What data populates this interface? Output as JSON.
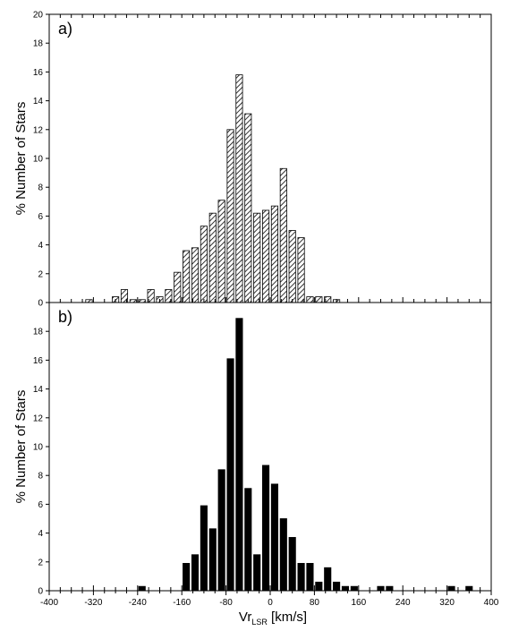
{
  "chart_data": [
    {
      "type": "bar",
      "panel_label": "a)",
      "title": "",
      "xlabel": "",
      "ylabel": "% Number of Stars",
      "xlim": [
        -400,
        400
      ],
      "ylim": [
        0,
        20
      ],
      "y_ticks": [
        0,
        2,
        4,
        6,
        8,
        10,
        12,
        14,
        16,
        18,
        20
      ],
      "bin_width": 16,
      "fill": "hatched",
      "bar_color": "#000000",
      "grid": false,
      "x": [
        -328,
        -280,
        -264,
        -248,
        -232,
        -216,
        -200,
        -184,
        -168,
        -152,
        -136,
        -120,
        -104,
        -88,
        -72,
        -56,
        -40,
        -24,
        -8,
        8,
        24,
        40,
        56,
        72,
        88,
        104,
        120,
        136,
        152
      ],
      "values": [
        0.2,
        0.4,
        0.9,
        0.2,
        0.2,
        0.9,
        0.4,
        0.9,
        2.1,
        3.6,
        3.8,
        5.3,
        6.2,
        7.1,
        12.0,
        15.8,
        13.1,
        6.2,
        6.4,
        6.7,
        9.3,
        5.0,
        4.5,
        0.4,
        0.4,
        0.4,
        0.2,
        0.0,
        0.0
      ]
    },
    {
      "type": "bar",
      "panel_label": "b)",
      "title": "",
      "xlabel": "Vr",
      "xlabel_sub": "LSR",
      "xlabel_unit": " [km/s]",
      "ylabel": "% Number of Stars",
      "xlim": [
        -400,
        400
      ],
      "ylim": [
        0,
        20
      ],
      "y_ticks": [
        0,
        2,
        4,
        6,
        8,
        10,
        12,
        14,
        16,
        18
      ],
      "x_ticks": [
        -400,
        -320,
        -240,
        -160,
        -80,
        0,
        80,
        160,
        240,
        320,
        400
      ],
      "bin_width": 16,
      "fill": "solid",
      "bar_color": "#000000",
      "grid": false,
      "x": [
        -232,
        -152,
        -136,
        -120,
        -104,
        -88,
        -72,
        -56,
        -40,
        -24,
        -8,
        8,
        24,
        40,
        56,
        72,
        88,
        104,
        120,
        136,
        152,
        200,
        216,
        264,
        296,
        328,
        360
      ],
      "values": [
        0.3,
        1.9,
        2.5,
        5.9,
        4.3,
        8.4,
        16.1,
        18.9,
        7.1,
        2.5,
        8.7,
        7.4,
        5.0,
        3.7,
        1.9,
        1.9,
        0.6,
        1.6,
        0.6,
        0.3,
        0.3,
        0.3,
        0.3,
        0.0,
        0.0,
        0.3,
        0.3
      ]
    }
  ]
}
